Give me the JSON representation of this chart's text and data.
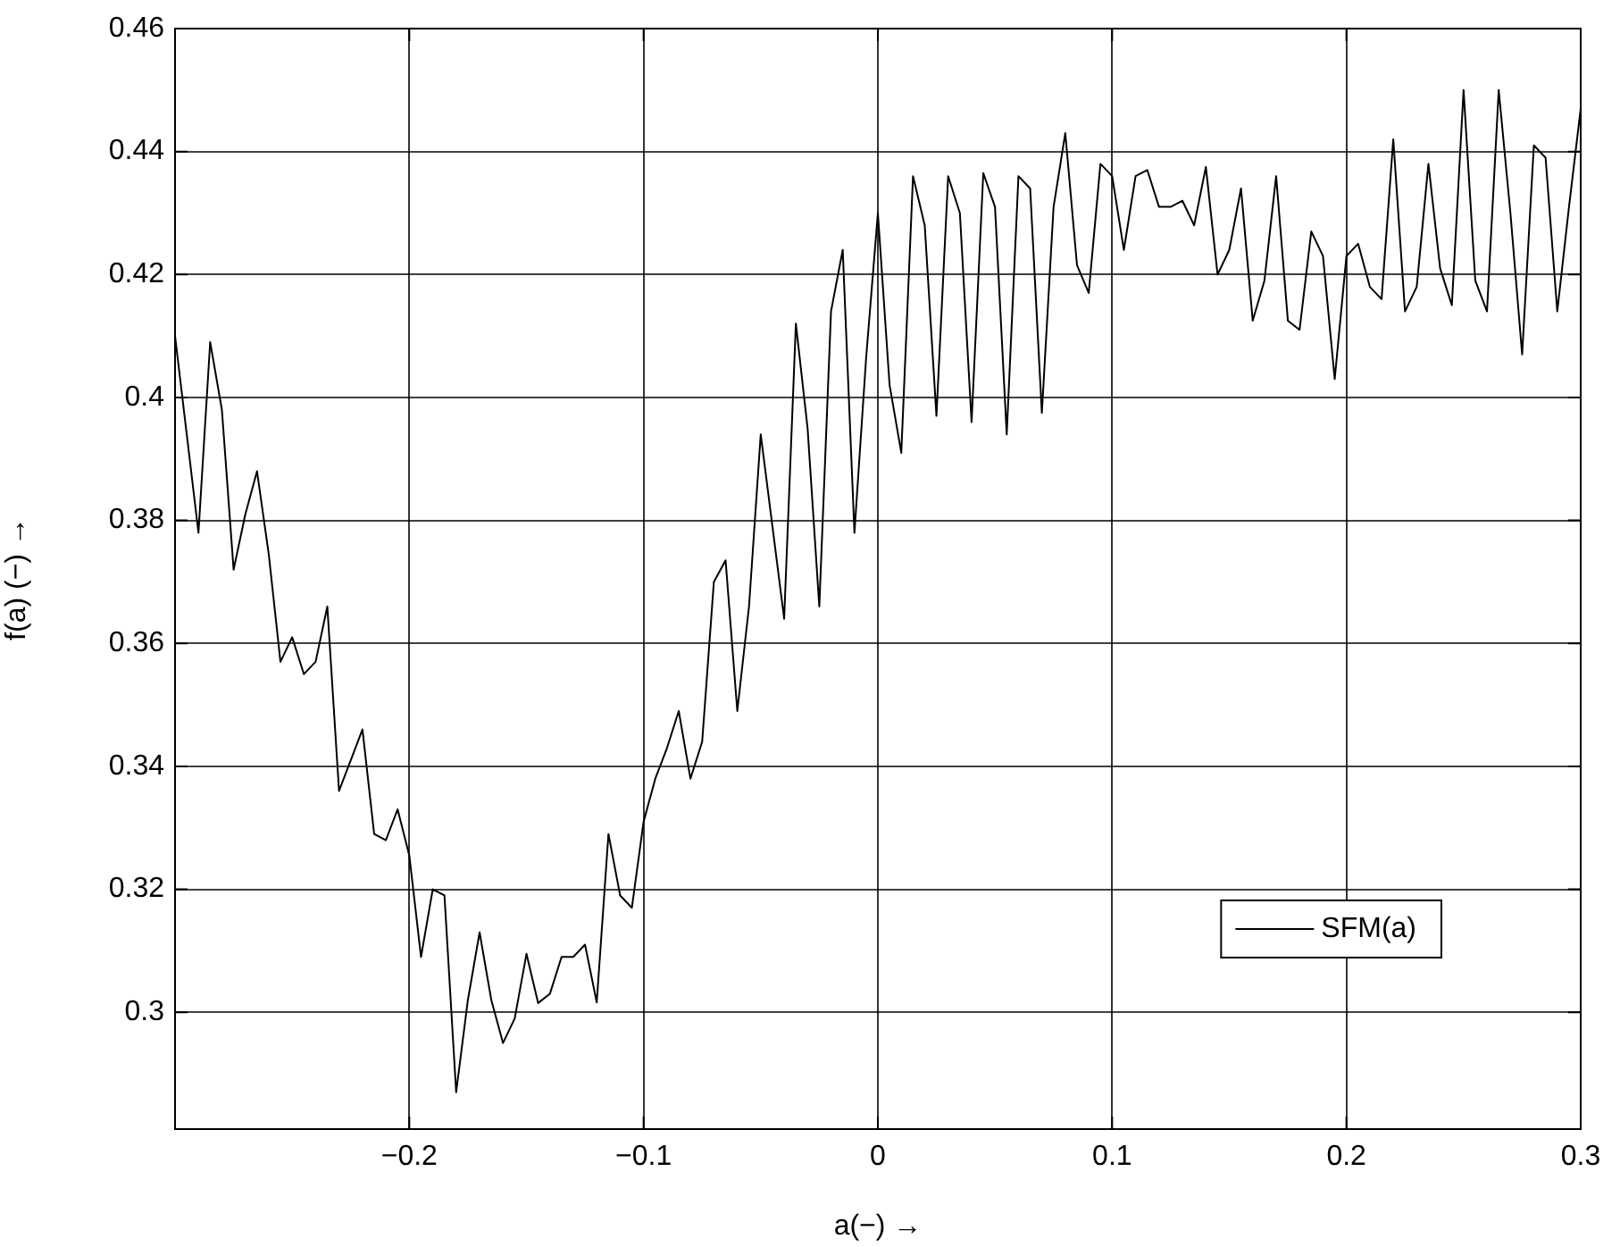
{
  "chart_data": {
    "type": "line",
    "xlabel": "a(−) →",
    "ylabel": "f(a) (−) →",
    "xlim": [
      -0.3,
      0.3
    ],
    "ylim": [
      0.281,
      0.46
    ],
    "xticks": [
      {
        "value": -0.2,
        "label": "−0.2"
      },
      {
        "value": -0.1,
        "label": "−0.1"
      },
      0,
      0.1,
      0.2,
      0.3
    ],
    "yticks": [
      0.3,
      0.32,
      0.34,
      0.36,
      0.38,
      0.4,
      0.42,
      0.44,
      0.46
    ],
    "grid": true,
    "legend": "bottom right",
    "marker": "none",
    "line_style": "solid",
    "x": [
      -0.3,
      -0.295,
      -0.29,
      -0.285,
      -0.28,
      -0.275,
      -0.27,
      -0.265,
      -0.26,
      -0.255,
      -0.25,
      -0.245,
      -0.24,
      -0.235,
      -0.23,
      -0.225,
      -0.22,
      -0.215,
      -0.21,
      -0.205,
      -0.2,
      -0.195,
      -0.19,
      -0.185,
      -0.18,
      -0.175,
      -0.17,
      -0.165,
      -0.16,
      -0.155,
      -0.15,
      -0.145,
      -0.14,
      -0.135,
      -0.13,
      -0.125,
      -0.12,
      -0.115,
      -0.11,
      -0.105,
      -0.1,
      -0.095,
      -0.09,
      -0.085,
      -0.08,
      -0.075,
      -0.07,
      -0.065,
      -0.06,
      -0.055,
      -0.05,
      -0.045,
      -0.04,
      -0.035,
      -0.03,
      -0.025,
      -0.02,
      -0.015,
      -0.01,
      -0.005,
      0,
      0.005,
      0.01,
      0.015,
      0.02,
      0.025,
      0.03,
      0.035,
      0.04,
      0.045,
      0.05,
      0.055,
      0.06,
      0.065,
      0.07,
      0.075,
      0.08,
      0.085,
      0.09,
      0.095,
      0.1,
      0.105,
      0.11,
      0.115,
      0.12,
      0.125,
      0.13,
      0.135,
      0.14,
      0.145,
      0.15,
      0.155,
      0.16,
      0.165,
      0.17,
      0.175,
      0.18,
      0.185,
      0.19,
      0.195,
      0.2,
      0.205,
      0.21,
      0.215,
      0.22,
      0.225,
      0.23,
      0.235,
      0.24,
      0.245,
      0.25,
      0.255,
      0.26,
      0.265,
      0.27,
      0.275,
      0.28,
      0.285,
      0.29,
      0.295,
      0.3
    ],
    "series": [
      {
        "name": "SFM(a)",
        "color": "#000000",
        "values": [
          0.41,
          0.394,
          0.378,
          0.409,
          0.398,
          0.372,
          0.381,
          0.388,
          0.3745,
          0.357,
          0.361,
          0.355,
          0.357,
          0.366,
          0.336,
          0.341,
          0.346,
          0.329,
          0.328,
          0.333,
          0.3255,
          0.309,
          0.32,
          0.319,
          0.287,
          0.302,
          0.313,
          0.302,
          0.295,
          0.299,
          0.3095,
          0.3015,
          0.303,
          0.309,
          0.309,
          0.311,
          0.3016,
          0.329,
          0.319,
          0.317,
          0.331,
          0.338,
          0.343,
          0.349,
          0.338,
          0.344,
          0.37,
          0.3735,
          0.349,
          0.366,
          0.394,
          0.379,
          0.364,
          0.412,
          0.395,
          0.366,
          0.414,
          0.424,
          0.378,
          0.4065,
          0.43,
          0.402,
          0.391,
          0.436,
          0.428,
          0.397,
          0.436,
          0.43,
          0.396,
          0.4365,
          0.431,
          0.394,
          0.436,
          0.434,
          0.3975,
          0.431,
          0.443,
          0.4215,
          0.417,
          0.438,
          0.436,
          0.424,
          0.436,
          0.437,
          0.431,
          0.431,
          0.432,
          0.428,
          0.4375,
          0.42,
          0.424,
          0.434,
          0.4125,
          0.419,
          0.436,
          0.4125,
          0.411,
          0.427,
          0.423,
          0.403,
          0.423,
          0.425,
          0.418,
          0.416,
          0.442,
          0.414,
          0.418,
          0.438,
          0.421,
          0.415,
          0.45,
          0.419,
          0.414,
          0.45,
          0.43,
          0.407,
          0.441,
          0.439,
          0.414,
          0.431,
          0.447
        ]
      }
    ]
  }
}
